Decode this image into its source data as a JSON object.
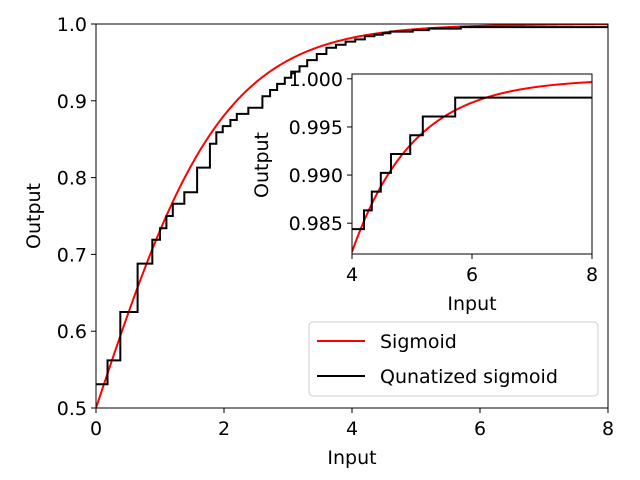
{
  "chart_data": [
    {
      "type": "line",
      "role": "main",
      "xlabel": "Input",
      "ylabel": "Output",
      "xlim": [
        0,
        8
      ],
      "ylim": [
        0.5,
        1.0
      ],
      "xticks": [
        0,
        2,
        4,
        6,
        8
      ],
      "xtick_labels": [
        "0",
        "2",
        "4",
        "6",
        "8"
      ],
      "yticks": [
        0.5,
        0.6,
        0.7,
        0.8,
        0.9,
        1.0
      ],
      "ytick_labels": [
        "0.5",
        "0.6",
        "0.7",
        "0.8",
        "0.9",
        "1.0"
      ],
      "grid": false,
      "legend": {
        "placement": "lower-right",
        "entries": [
          "Sigmoid",
          "Qunatized sigmoid"
        ]
      },
      "series": [
        {
          "name": "Sigmoid",
          "color": "#ff0000",
          "function": "1/(1+exp(-x))",
          "x": [
            0,
            0.5,
            1,
            1.5,
            2,
            2.5,
            3,
            4,
            5,
            6,
            7,
            8
          ],
          "values": [
            0.5,
            0.622,
            0.731,
            0.818,
            0.881,
            0.924,
            0.953,
            0.982,
            0.993,
            0.998,
            0.999,
            1.0
          ]
        },
        {
          "name": "Qunatized sigmoid",
          "color": "#000000",
          "step": "post",
          "x": [
            0,
            0.18,
            0.38,
            0.65,
            0.88,
            1.0,
            1.1,
            1.2,
            1.38,
            1.58,
            1.78,
            1.88,
            1.98,
            2.1,
            2.2,
            2.38,
            2.6,
            2.72,
            2.83,
            2.95,
            3.05,
            3.18,
            3.3,
            3.45,
            3.6,
            3.75,
            3.9,
            4.05,
            4.2,
            4.35,
            4.48,
            4.6,
            4.95,
            5.2,
            5.7,
            8.0
          ],
          "values": [
            0.531,
            0.562,
            0.625,
            0.688,
            0.719,
            0.734,
            0.75,
            0.766,
            0.781,
            0.813,
            0.844,
            0.859,
            0.867,
            0.875,
            0.883,
            0.891,
            0.906,
            0.914,
            0.922,
            0.93,
            0.938,
            0.945,
            0.953,
            0.961,
            0.969,
            0.973,
            0.977,
            0.98,
            0.984,
            0.986,
            0.988,
            0.99,
            0.992,
            0.994,
            0.996,
            0.998
          ]
        }
      ]
    },
    {
      "type": "line",
      "role": "inset",
      "xlabel": "Input",
      "ylabel": "Output",
      "xlim": [
        4,
        8
      ],
      "ylim": [
        0.9818,
        1.0005
      ],
      "xticks": [
        4,
        6,
        8
      ],
      "xtick_labels": [
        "4",
        "6",
        "8"
      ],
      "yticks": [
        0.985,
        0.99,
        0.995,
        1.0
      ],
      "ytick_labels": [
        "0.985",
        "0.990",
        "0.995",
        "1.000"
      ],
      "grid": false,
      "series": [
        {
          "name": "Sigmoid",
          "color": "#ff0000",
          "function": "1/(1+exp(-x))",
          "x": [
            4,
            4.5,
            5,
            5.5,
            6,
            6.5,
            7,
            7.5,
            8
          ],
          "values": [
            0.982,
            0.989,
            0.993,
            0.996,
            0.9975,
            0.9985,
            0.9991,
            0.9994,
            0.99966
          ]
        },
        {
          "name": "Qunatized sigmoid",
          "color": "#000000",
          "step": "post",
          "x": [
            4.0,
            4.2,
            4.33,
            4.48,
            4.65,
            4.97,
            5.18,
            5.72,
            8.0
          ],
          "values": [
            0.98438,
            0.98633,
            0.98828,
            0.99023,
            0.99219,
            0.99414,
            0.99609,
            0.99805,
            0.99805
          ]
        }
      ]
    }
  ]
}
